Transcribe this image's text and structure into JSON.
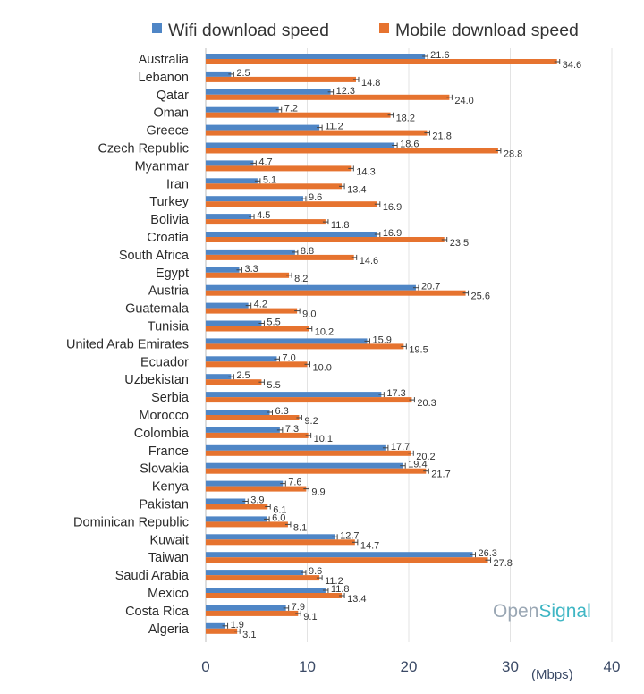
{
  "chart_data": {
    "type": "bar",
    "orientation": "horizontal",
    "unit_label": "(Mbps)",
    "xlim": [
      0,
      40
    ],
    "x_ticks": [
      "0",
      "10",
      "20",
      "30",
      "40"
    ],
    "grid": true,
    "legend_position": "top",
    "categories": [
      "Australia",
      "Lebanon",
      "Qatar",
      "Oman",
      "Greece",
      "Czech Republic",
      "Myanmar",
      "Iran",
      "Turkey",
      "Bolivia",
      "Croatia",
      "South Africa",
      "Egypt",
      "Austria",
      "Guatemala",
      "Tunisia",
      "United Arab Emirates",
      "Ecuador",
      "Uzbekistan",
      "Serbia",
      "Morocco",
      "Colombia",
      "France",
      "Slovakia",
      "Kenya",
      "Pakistan",
      "Dominican Republic",
      "Kuwait",
      "Taiwan",
      "Saudi Arabia",
      "Mexico",
      "Costa Rica",
      "Algeria"
    ],
    "series": [
      {
        "name": "Wifi download speed",
        "color": "#4f86c6",
        "values": [
          21.6,
          2.5,
          12.3,
          7.2,
          11.2,
          18.6,
          4.7,
          5.1,
          9.6,
          4.5,
          16.9,
          8.8,
          3.3,
          20.7,
          4.2,
          5.5,
          15.9,
          7.0,
          2.5,
          17.3,
          6.3,
          7.3,
          17.7,
          19.4,
          7.6,
          3.9,
          6.0,
          12.7,
          26.3,
          9.6,
          11.8,
          7.9,
          1.9
        ],
        "labels": [
          "21.6",
          "2.5",
          "12.3",
          "7.2",
          "11.2",
          "18.6",
          "4.7",
          "5.1",
          "9.6",
          "4.5",
          "16.9",
          "8.8",
          "3.3",
          "20.7",
          "4.2",
          "5.5",
          "15.9",
          "7.0",
          "2.5",
          "17.3",
          "6.3",
          "7.3",
          "17.7",
          "19.4",
          "7.6",
          "3.9",
          "6.0",
          "12.7",
          "26.3",
          "9.6",
          "11.8",
          "7.9",
          "1.9"
        ]
      },
      {
        "name": "Mobile download speed",
        "color": "#e6732f",
        "values": [
          34.6,
          14.8,
          24.0,
          18.2,
          21.8,
          28.8,
          14.3,
          13.4,
          16.9,
          11.8,
          23.5,
          14.6,
          8.2,
          25.6,
          9.0,
          10.2,
          19.5,
          10.0,
          5.5,
          20.3,
          9.2,
          10.1,
          20.2,
          21.7,
          9.9,
          6.1,
          8.1,
          14.7,
          27.8,
          11.2,
          13.4,
          9.1,
          3.1
        ],
        "labels": [
          "34.6",
          "14.8",
          "24.0",
          "18.2",
          "21.8",
          "28.8",
          "14.3",
          "13.4",
          "16.9",
          "11.8",
          "23.5",
          "14.6",
          "8.2",
          "25.6",
          "9.0",
          "10.2",
          "19.5",
          "10.0",
          "5.5",
          "20.3",
          "9.2",
          "10.1",
          "20.2",
          "21.7",
          "9.9",
          "6.1",
          "8.1",
          "14.7",
          "27.8",
          "11.2",
          "13.4",
          "9.1",
          "3.1"
        ]
      }
    ]
  },
  "brand": {
    "part1": "Open",
    "part2": "Signal"
  },
  "colors": {
    "wifi": "#4f86c6",
    "mobile": "#e6732f",
    "grid": "#e3e3e3"
  }
}
